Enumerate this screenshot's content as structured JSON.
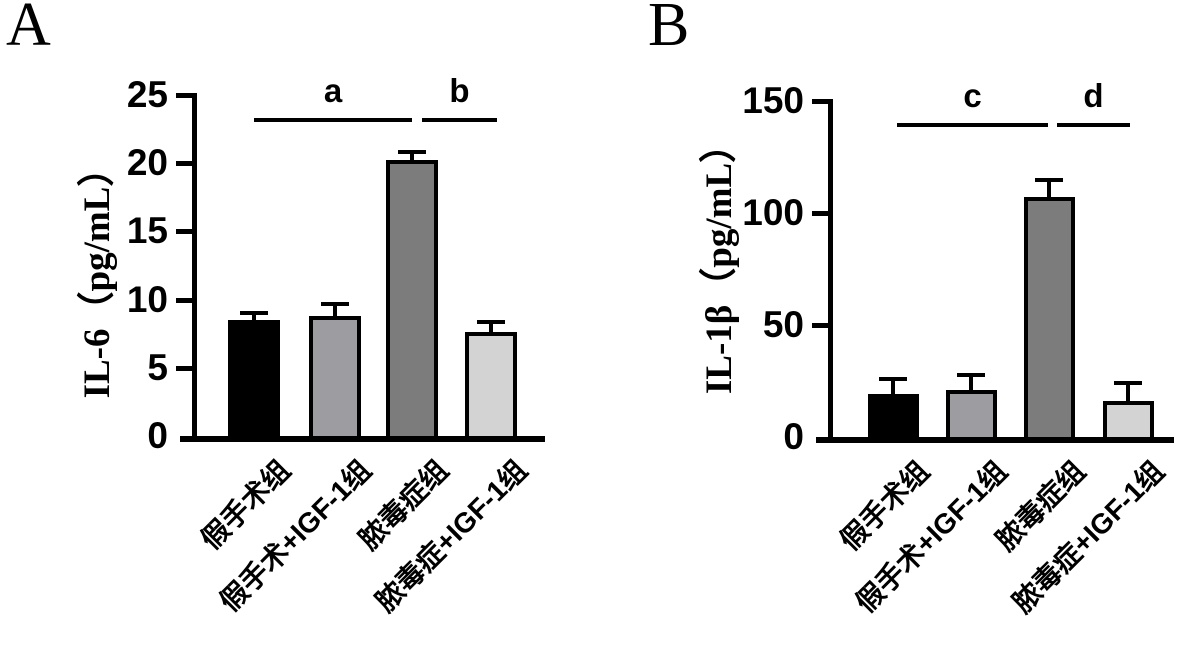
{
  "figure": {
    "background": "#ffffff",
    "axis_color": "#000000",
    "panels": [
      "A",
      "B"
    ]
  },
  "chart_data": [
    {
      "type": "bar",
      "panel_label": "A",
      "title": "",
      "xlabel": "",
      "ylabel": "IL-6（pg/mL）",
      "categories": [
        "假手术组",
        "假手术+IGF-1组",
        "脓毒症组",
        "脓毒症+IGF-1组"
      ],
      "values": [
        8.5,
        8.8,
        20.2,
        7.6
      ],
      "errors": [
        0.4,
        0.7,
        0.5,
        0.6
      ],
      "bar_colors": [
        "#000000",
        "#9d9da1",
        "#7c7c7c",
        "#d3d3d3"
      ],
      "ylim": [
        0,
        25
      ],
      "yticks": [
        0,
        5,
        10,
        15,
        20,
        25
      ],
      "grid": false,
      "legend": null,
      "annotations": [
        {
          "label": "a",
          "from_bar": 0,
          "to_bar": 2
        },
        {
          "label": "b",
          "from_bar": 2,
          "to_bar": 3
        }
      ]
    },
    {
      "type": "bar",
      "panel_label": "B",
      "title": "",
      "xlabel": "",
      "ylabel": "IL-1β（pg/mL）",
      "categories": [
        "假手术组",
        "假手术+IGF-1组",
        "脓毒症组",
        "脓毒症+IGF-1组"
      ],
      "values": [
        19,
        21,
        107,
        16
      ],
      "errors": [
        6,
        6,
        7,
        7
      ],
      "bar_colors": [
        "#000000",
        "#9d9da1",
        "#7c7c7c",
        "#d3d3d3"
      ],
      "ylim": [
        0,
        150
      ],
      "yticks": [
        0,
        50,
        100,
        150
      ],
      "grid": false,
      "legend": null,
      "annotations": [
        {
          "label": "c",
          "from_bar": 0,
          "to_bar": 2
        },
        {
          "label": "d",
          "from_bar": 2,
          "to_bar": 3
        }
      ]
    }
  ]
}
